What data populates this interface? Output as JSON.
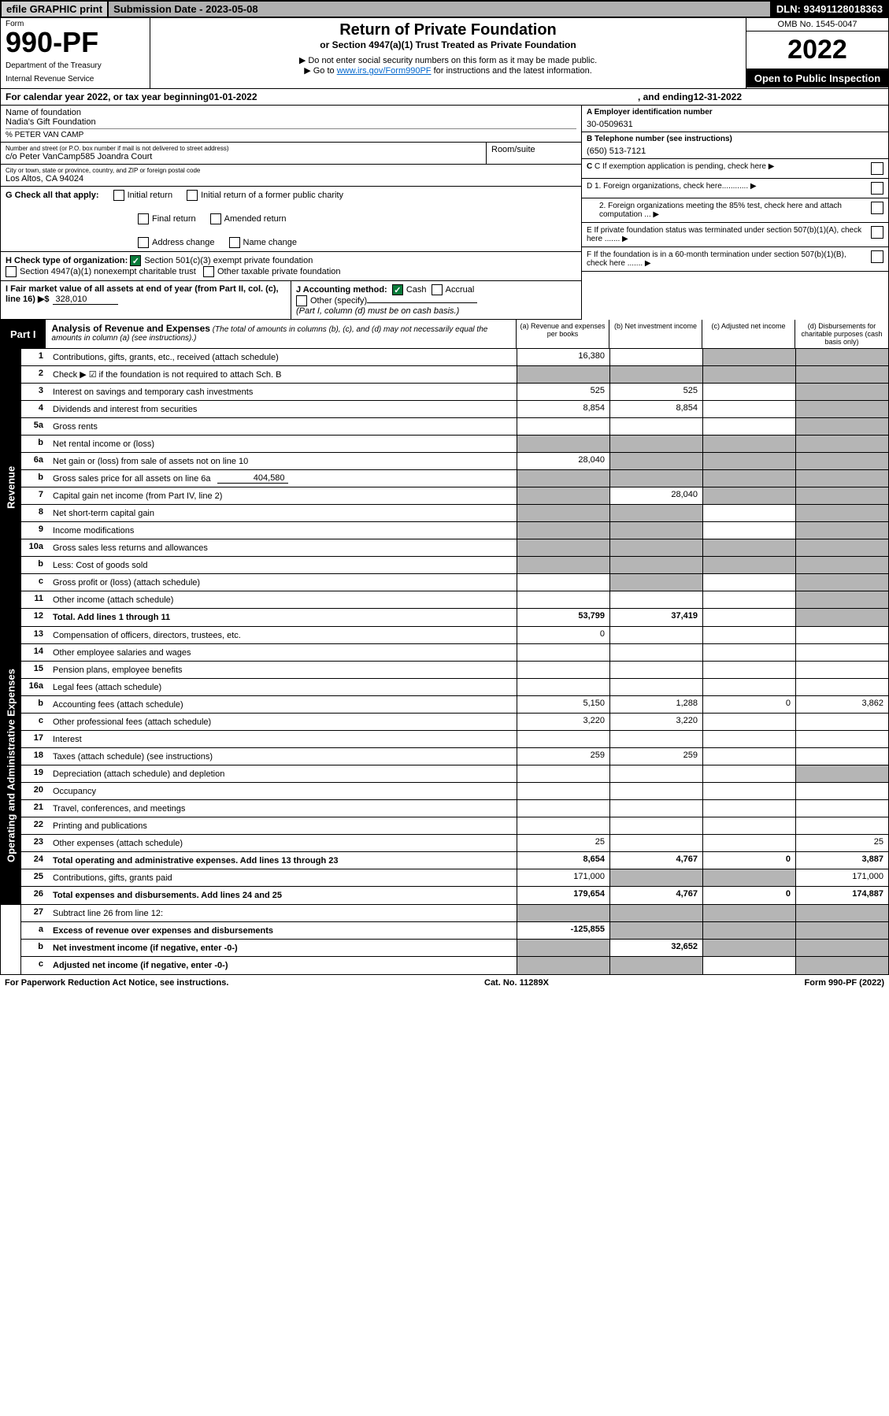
{
  "topbar": {
    "efile": "efile GRAPHIC print",
    "submission": "Submission Date - 2023-05-08",
    "dln": "DLN: 93491128018363"
  },
  "header": {
    "form": "Form",
    "num": "990-PF",
    "dept": "Department of the Treasury",
    "irs": "Internal Revenue Service",
    "title": "Return of Private Foundation",
    "subtitle": "or Section 4947(a)(1) Trust Treated as Private Foundation",
    "inst1": "▶ Do not enter social security numbers on this form as it may be made public.",
    "inst2_pre": "▶ Go to ",
    "inst2_link": "www.irs.gov/Form990PF",
    "inst2_post": " for instructions and the latest information.",
    "omb": "OMB No. 1545-0047",
    "year": "2022",
    "open": "Open to Public Inspection"
  },
  "calyear": {
    "pre": "For calendar year 2022, or tax year beginning ",
    "begin": "01-01-2022",
    "mid": ", and ending ",
    "end": "12-31-2022"
  },
  "id": {
    "name_lbl": "Name of foundation",
    "name": "Nadia's Gift Foundation",
    "careof": "% PETER VAN CAMP",
    "addr_lbl": "Number and street (or P.O. box number if mail is not delivered to street address)",
    "addr": "c/o Peter VanCamp585 Joandra Court",
    "room_lbl": "Room/suite",
    "city_lbl": "City or town, state or province, country, and ZIP or foreign postal code",
    "city": "Los Altos, CA  94024",
    "a_lbl": "A Employer identification number",
    "ein": "30-0509631",
    "b_lbl": "B Telephone number (see instructions)",
    "phone": "(650) 513-7121",
    "c": "C If exemption application is pending, check here",
    "d1": "D 1. Foreign organizations, check here............",
    "d2": "2. Foreign organizations meeting the 85% test, check here and attach computation ...",
    "e": "E  If private foundation status was terminated under section 507(b)(1)(A), check here .......",
    "f": "F  If the foundation is in a 60-month termination under section 507(b)(1)(B), check here .......",
    "g_lbl": "G Check all that apply:",
    "g_opts": [
      "Initial return",
      "Final return",
      "Address change",
      "Initial return of a former public charity",
      "Amended return",
      "Name change"
    ],
    "h_lbl": "H Check type of organization:",
    "h1": "Section 501(c)(3) exempt private foundation",
    "h2": "Section 4947(a)(1) nonexempt charitable trust",
    "h3": "Other taxable private foundation",
    "i_lbl": "I Fair market value of all assets at end of year (from Part II, col. (c), line 16)",
    "i_val": "328,010",
    "j_lbl": "J Accounting method:",
    "j_cash": "Cash",
    "j_accr": "Accrual",
    "j_other": "Other (specify)",
    "j_note": "(Part I, column (d) must be on cash basis.)"
  },
  "part1": {
    "label": "Part I",
    "title": "Analysis of Revenue and Expenses",
    "note": "(The total of amounts in columns (b), (c), and (d) may not necessarily equal the amounts in column (a) (see instructions).)",
    "col_a": "(a)  Revenue and expenses per books",
    "col_b": "(b)  Net investment income",
    "col_c": "(c)  Adjusted net income",
    "col_d": "(d)  Disbursements for charitable purposes (cash basis only)"
  },
  "sections": {
    "revenue": "Revenue",
    "expenses": "Operating and Administrative Expenses"
  },
  "lines": {
    "l1": {
      "n": "1",
      "t": "Contributions, gifts, grants, etc., received (attach schedule)",
      "a": "16,380"
    },
    "l2": {
      "n": "2",
      "t": "Check ▶ ☑ if the foundation is not required to attach Sch. B"
    },
    "l3": {
      "n": "3",
      "t": "Interest on savings and temporary cash investments",
      "a": "525",
      "b": "525"
    },
    "l4": {
      "n": "4",
      "t": "Dividends and interest from securities",
      "a": "8,854",
      "b": "8,854"
    },
    "l5a": {
      "n": "5a",
      "t": "Gross rents"
    },
    "l5b": {
      "n": "b",
      "t": "Net rental income or (loss)"
    },
    "l6a": {
      "n": "6a",
      "t": "Net gain or (loss) from sale of assets not on line 10",
      "a": "28,040"
    },
    "l6b": {
      "n": "b",
      "t": "Gross sales price for all assets on line 6a",
      "inline": "404,580"
    },
    "l7": {
      "n": "7",
      "t": "Capital gain net income (from Part IV, line 2)",
      "b": "28,040"
    },
    "l8": {
      "n": "8",
      "t": "Net short-term capital gain"
    },
    "l9": {
      "n": "9",
      "t": "Income modifications"
    },
    "l10a": {
      "n": "10a",
      "t": "Gross sales less returns and allowances"
    },
    "l10b": {
      "n": "b",
      "t": "Less: Cost of goods sold"
    },
    "l10c": {
      "n": "c",
      "t": "Gross profit or (loss) (attach schedule)"
    },
    "l11": {
      "n": "11",
      "t": "Other income (attach schedule)"
    },
    "l12": {
      "n": "12",
      "t": "Total. Add lines 1 through 11",
      "a": "53,799",
      "b": "37,419",
      "bold": true
    },
    "l13": {
      "n": "13",
      "t": "Compensation of officers, directors, trustees, etc.",
      "a": "0"
    },
    "l14": {
      "n": "14",
      "t": "Other employee salaries and wages"
    },
    "l15": {
      "n": "15",
      "t": "Pension plans, employee benefits"
    },
    "l16a": {
      "n": "16a",
      "t": "Legal fees (attach schedule)"
    },
    "l16b": {
      "n": "b",
      "t": "Accounting fees (attach schedule)",
      "a": "5,150",
      "b": "1,288",
      "c": "0",
      "d": "3,862"
    },
    "l16c": {
      "n": "c",
      "t": "Other professional fees (attach schedule)",
      "a": "3,220",
      "b": "3,220"
    },
    "l17": {
      "n": "17",
      "t": "Interest"
    },
    "l18": {
      "n": "18",
      "t": "Taxes (attach schedule) (see instructions)",
      "a": "259",
      "b": "259"
    },
    "l19": {
      "n": "19",
      "t": "Depreciation (attach schedule) and depletion"
    },
    "l20": {
      "n": "20",
      "t": "Occupancy"
    },
    "l21": {
      "n": "21",
      "t": "Travel, conferences, and meetings"
    },
    "l22": {
      "n": "22",
      "t": "Printing and publications"
    },
    "l23": {
      "n": "23",
      "t": "Other expenses (attach schedule)",
      "a": "25",
      "d": "25"
    },
    "l24": {
      "n": "24",
      "t": "Total operating and administrative expenses. Add lines 13 through 23",
      "a": "8,654",
      "b": "4,767",
      "c": "0",
      "d": "3,887",
      "bold": true
    },
    "l25": {
      "n": "25",
      "t": "Contributions, gifts, grants paid",
      "a": "171,000",
      "d": "171,000"
    },
    "l26": {
      "n": "26",
      "t": "Total expenses and disbursements. Add lines 24 and 25",
      "a": "179,654",
      "b": "4,767",
      "c": "0",
      "d": "174,887",
      "bold": true
    },
    "l27": {
      "n": "27",
      "t": "Subtract line 26 from line 12:"
    },
    "l27a": {
      "n": "a",
      "t": "Excess of revenue over expenses and disbursements",
      "a": "-125,855",
      "bold": true
    },
    "l27b": {
      "n": "b",
      "t": "Net investment income (if negative, enter -0-)",
      "b": "32,652",
      "bold": true
    },
    "l27c": {
      "n": "c",
      "t": "Adjusted net income (if negative, enter -0-)",
      "bold": true
    }
  },
  "footer": {
    "left": "For Paperwork Reduction Act Notice, see instructions.",
    "mid": "Cat. No. 11289X",
    "right": "Form 990-PF (2022)"
  }
}
